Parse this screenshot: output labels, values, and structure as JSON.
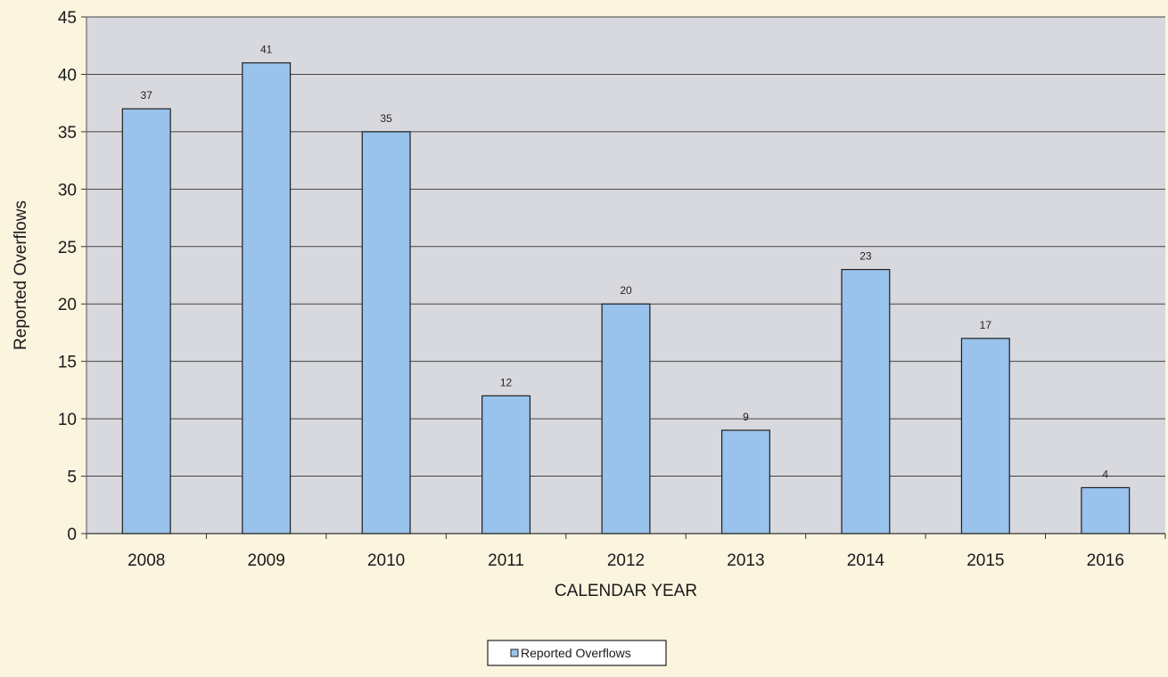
{
  "chart_data": {
    "type": "bar",
    "title": "",
    "xlabel": "CALENDAR YEAR",
    "ylabel": "Reported Overflows",
    "categories": [
      "2008",
      "2009",
      "2010",
      "2011",
      "2012",
      "2013",
      "2014",
      "2015",
      "2016"
    ],
    "series": [
      {
        "name": "Reported Overflows",
        "values": [
          37,
          41,
          35,
          12,
          20,
          9,
          23,
          17,
          4
        ],
        "data_labels": [
          "37",
          "41",
          "35",
          "12",
          "20",
          "9",
          "23",
          "17",
          "4"
        ]
      }
    ],
    "ylim": [
      0,
      45
    ],
    "yticks": [
      0,
      5,
      10,
      15,
      20,
      25,
      30,
      35,
      40,
      45
    ],
    "ytick_labels": [
      "0",
      "5",
      "10",
      "15",
      "20",
      "25",
      "30",
      "35",
      "40",
      "45"
    ],
    "grid": true,
    "legend_position": "bottom-center",
    "colors": {
      "bar_fill": "#99c2ec",
      "bar_stroke": "#1f1f1f",
      "plot_background": "#d8d9df",
      "page_background": "#fbf4df",
      "grid": "#444444"
    }
  }
}
